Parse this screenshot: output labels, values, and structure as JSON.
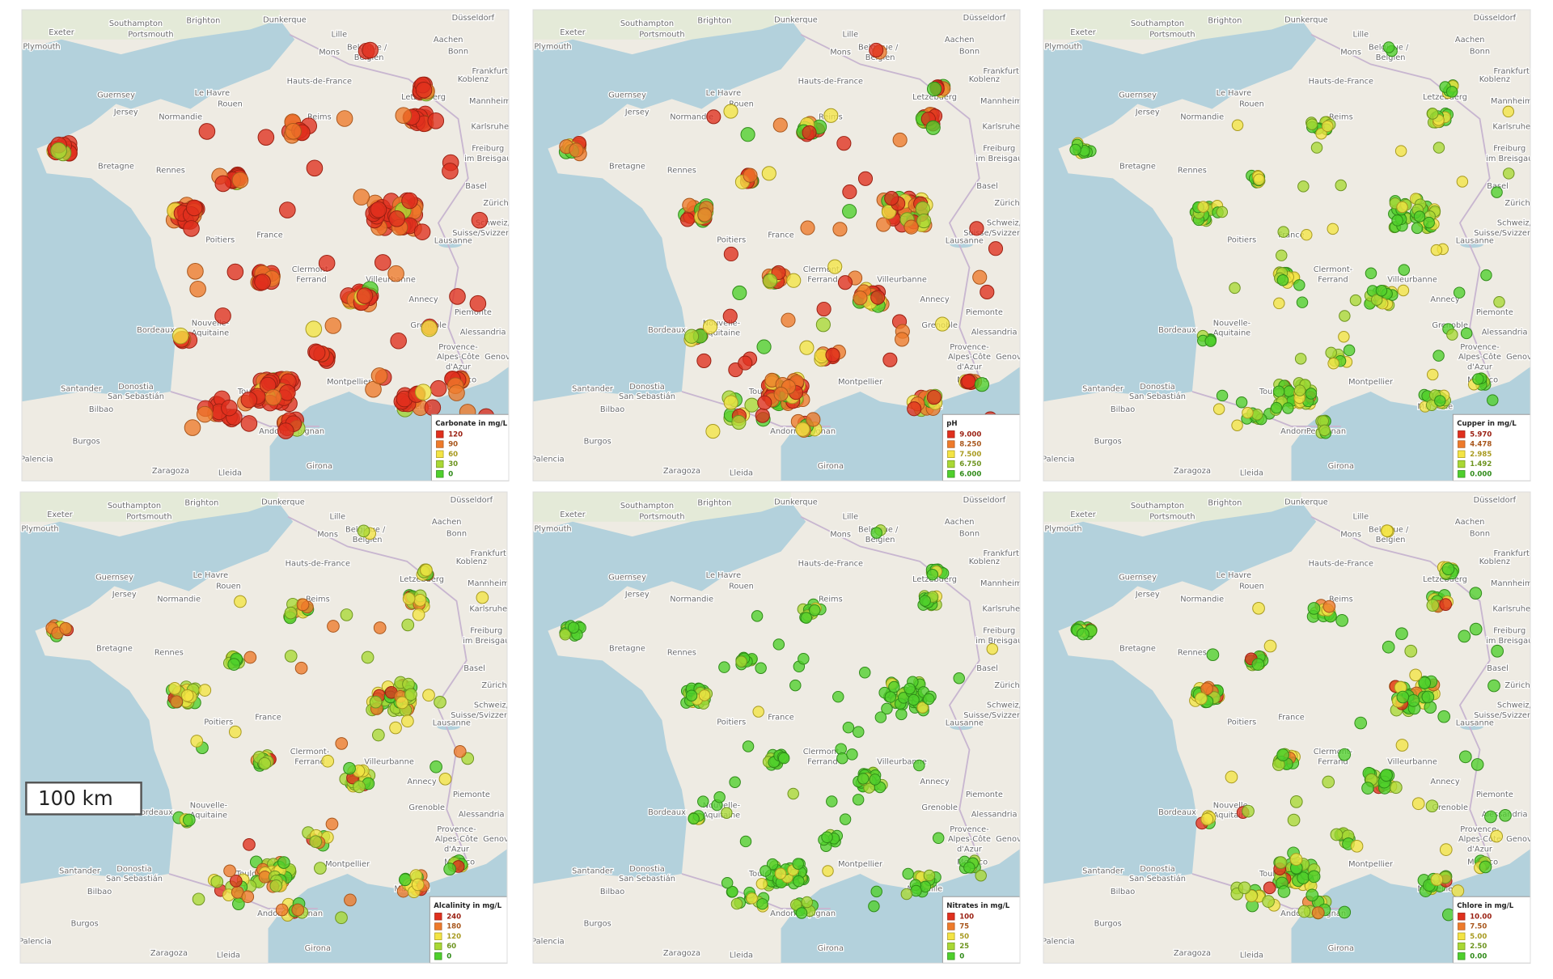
{
  "panels": [
    {
      "legend": {
        "title": "Carbonate in mg/L",
        "labels": [
          "120",
          "90",
          "60",
          "30",
          "0"
        ]
      }
    },
    {
      "legend": {
        "title": "pH",
        "labels": [
          "9.000",
          "8.250",
          "7.500",
          "6.750",
          "6.000"
        ]
      }
    },
    {
      "legend": {
        "title": "Cupper in mg/L",
        "labels": [
          "5.970",
          "4.478",
          "2.985",
          "1.492",
          "0.000"
        ]
      }
    },
    {
      "legend": {
        "title": "Alcalinity in mg/L",
        "labels": [
          "240",
          "180",
          "120",
          "60",
          "0"
        ]
      }
    },
    {
      "legend": {
        "title": "Nitrates in mg/L",
        "labels": [
          "100",
          "75",
          "50",
          "25",
          "0"
        ]
      }
    },
    {
      "legend": {
        "title": "Chlore in mg/L",
        "labels": [
          "10.00",
          "7.50",
          "5.00",
          "2.50",
          "0.00"
        ]
      }
    }
  ],
  "places": [
    "Exeter",
    "Southampton",
    "Brighton",
    "Portsmouth",
    "Plymouth",
    "Dunkerque",
    "Lille",
    "Düsseldorf",
    "Aachen",
    "Bonn",
    "Koblenz",
    "Frankfurt",
    "Mons",
    "Belgique /",
    "Belgien",
    "Guernsey",
    "Jersey",
    "Le Havre",
    "Rouen",
    "Hauts-de-France",
    "Letzebuerg",
    "Mannheim",
    "Reims",
    "Normandie",
    "Karlsruhe",
    "Bretagne",
    "Rennes",
    "Freiburg",
    "im Breisgau",
    "Basel",
    "Zürich",
    "Poitiers",
    "France",
    "Schweiz/",
    "Suisse/Svizzera",
    "Lausanne",
    "Clermont-",
    "Ferrand",
    "Villeurbanne",
    "Annecy",
    "Grenoble",
    "Bordeaux",
    "Nouvelle-",
    "Aquitaine",
    "Piemonte",
    "Alessandria",
    "Toulouse",
    "Montpellier",
    "Marseille",
    "Monaco",
    "Provence-",
    "Alpes-Côte",
    "d'Azur",
    "Donostia",
    "San Sebastián",
    "Santander",
    "Bilbao",
    "Andorra",
    "Perpignan",
    "Burgos",
    "Palencia",
    "Zaragoza",
    "Lleida",
    "Girona",
    "Genova"
  ],
  "scale_bar": "100 km"
}
